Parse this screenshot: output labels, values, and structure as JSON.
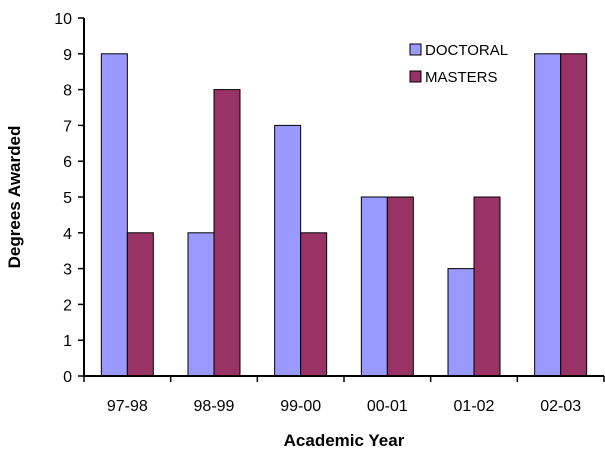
{
  "chart_data": {
    "type": "bar",
    "categories": [
      "97-98",
      "98-99",
      "99-00",
      "00-01",
      "01-02",
      "02-03"
    ],
    "series": [
      {
        "name": "DOCTORAL",
        "values": [
          9,
          4,
          7,
          5,
          3,
          9
        ],
        "color": "#9999ff"
      },
      {
        "name": "MASTERS",
        "values": [
          4,
          8,
          4,
          5,
          5,
          9
        ],
        "color": "#993366"
      }
    ],
    "xlabel": "Academic Year",
    "ylabel": "Degrees Awarded",
    "ylim": [
      0,
      10
    ],
    "yticks": [
      0,
      1,
      2,
      3,
      4,
      5,
      6,
      7,
      8,
      9,
      10
    ],
    "grid": false,
    "legend_position": "top-right"
  }
}
